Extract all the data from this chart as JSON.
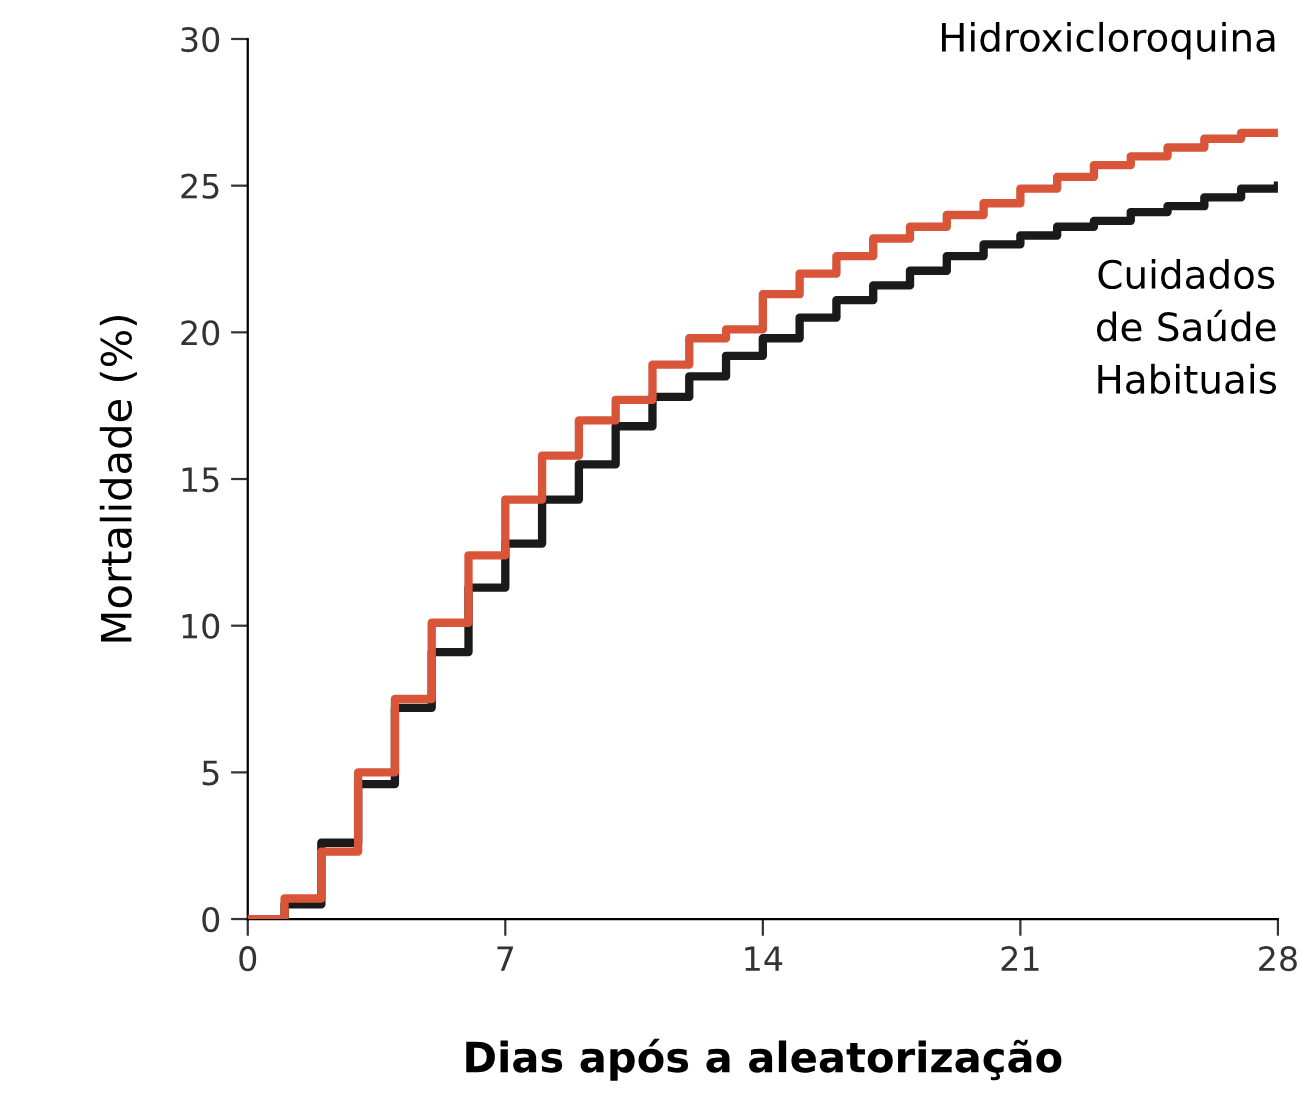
{
  "chart_data": {
    "type": "step",
    "xlabel": "Dias após a aleatorização",
    "ylabel": "Mortalidade (%)",
    "x": [
      0,
      1,
      2,
      3,
      4,
      5,
      6,
      7,
      8,
      9,
      10,
      11,
      12,
      13,
      14,
      15,
      16,
      17,
      18,
      19,
      20,
      21,
      22,
      23,
      24,
      25,
      26,
      27,
      28
    ],
    "series": [
      {
        "name": "Hidroxicloroquina",
        "color": "#d9553a",
        "values": [
          0,
          0.7,
          2.3,
          5.0,
          7.5,
          10.1,
          12.4,
          14.3,
          15.8,
          17.0,
          17.7,
          18.9,
          19.8,
          20.1,
          21.3,
          22.0,
          22.6,
          23.2,
          23.6,
          24.0,
          24.4,
          24.9,
          25.3,
          25.7,
          26.0,
          26.3,
          26.6,
          26.8,
          26.8
        ]
      },
      {
        "name": "Cuidados\nde Saúde\nHabituais",
        "color": "#1a1a1a",
        "values": [
          0,
          0.5,
          2.6,
          4.6,
          7.2,
          9.1,
          11.3,
          12.8,
          14.3,
          15.5,
          16.8,
          17.8,
          18.5,
          19.2,
          19.8,
          20.5,
          21.1,
          21.6,
          22.1,
          22.6,
          23.0,
          23.3,
          23.6,
          23.8,
          24.1,
          24.3,
          24.6,
          24.9,
          25.0
        ]
      }
    ],
    "xlim": [
      0,
      28
    ],
    "ylim": [
      0,
      30
    ],
    "xticks": [
      0,
      7,
      14,
      21,
      28
    ],
    "yticks": [
      0,
      5,
      10,
      15,
      20,
      25,
      30
    ],
    "grid": false,
    "legend": false
  }
}
